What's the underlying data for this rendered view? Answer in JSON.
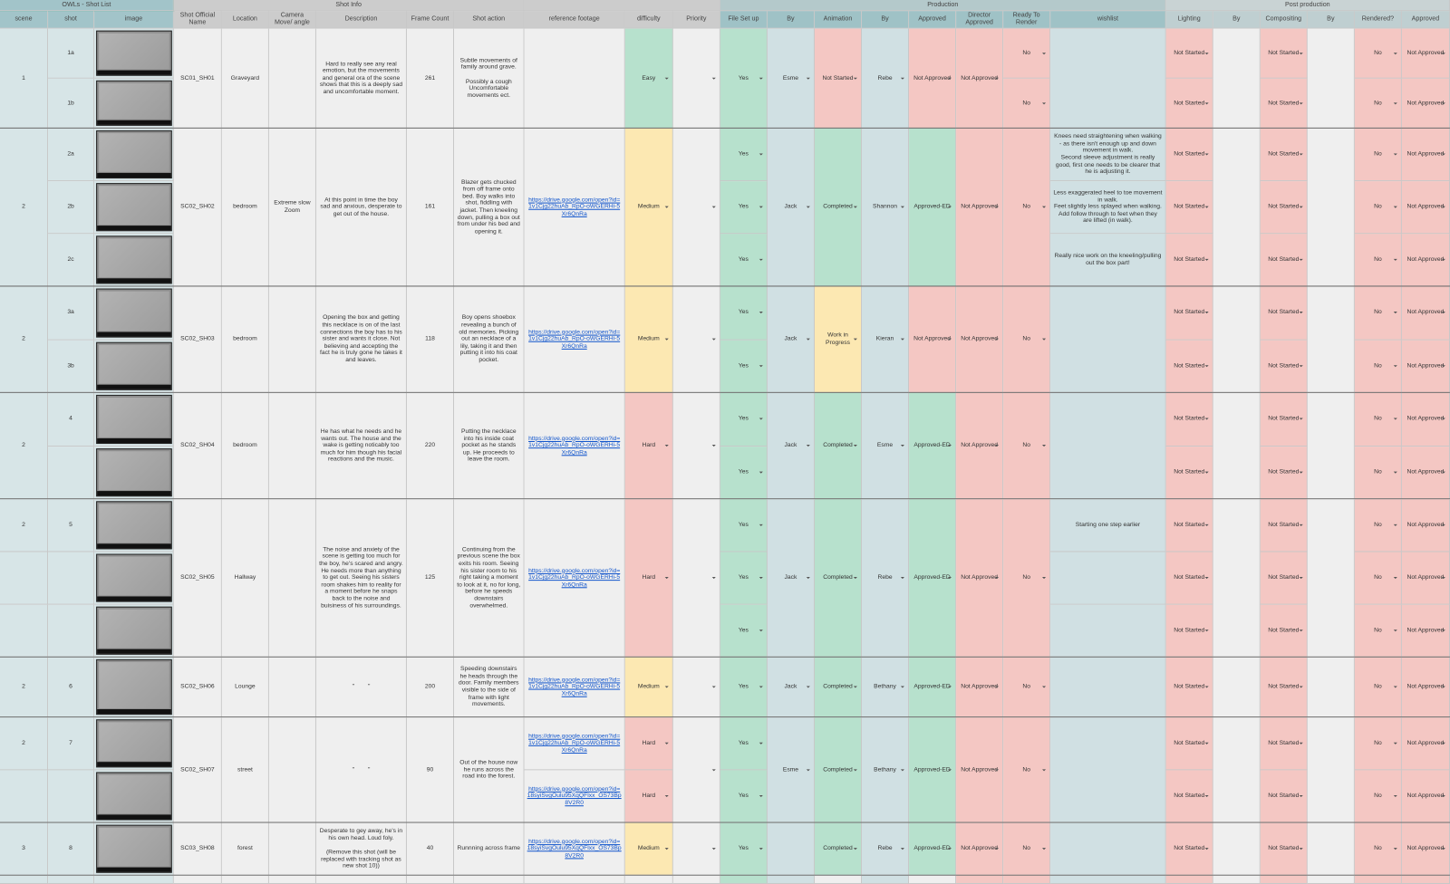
{
  "sheet": {
    "groups": [
      "OWLs - Shot List",
      "Shot Info",
      "Production",
      "Post production"
    ],
    "headers": [
      "scene",
      "shot",
      "image",
      "Shot Official Name",
      "Location",
      "Camera Move/ angle",
      "Description",
      "Frame Count",
      "Shot action",
      "reference footage",
      "difficulty",
      "Priority",
      "File Set up",
      "By",
      "Animation",
      "By",
      "Approved",
      "Director Approved",
      "Ready To Render",
      "wishlist",
      "Lighting",
      "By",
      "Compositing",
      "By",
      "Rendered?",
      "Approved"
    ],
    "cell_colors": {
      "Easy": "#b7e1cd",
      "Medium": "#fce8b2",
      "Hard": "#f4c7c3",
      "Not Started": "#f4c7c3",
      "Completed": "#b7e1cd",
      "Work in Progress": "#fce8b2",
      "Not Approved": "#f4c7c3",
      "Approved-ED": "#b7e1cd",
      "Yes": "#b7e1cd",
      "No": "#f4c7c3"
    },
    "shots": [
      {
        "scene": "1",
        "name": "SC01_SH01",
        "location": "Graveyard",
        "description": "Hard to really see any real emotion, but the movements and general ora of the scene shows that this is a deeply sad and uncomfortable moment.",
        "frames": 261,
        "action": "Subtle movements of family around grave.\n\nPossibly a cough Uncomfortable movements ect.",
        "difficulty": "Easy",
        "file_setup": "Yes",
        "by": "Esme",
        "animation": "Not Started",
        "anim_by": "Rebe",
        "approved": "Not Approved",
        "director": "Not Approved",
        "subrows": [
          {
            "shot": "1a",
            "ready": "No",
            "lighting": "Not Started",
            "compositing": "Not Started",
            "rendered": "No",
            "post_approved": "Not Approved"
          },
          {
            "shot": "1b",
            "ready": "No",
            "lighting": "Not Started",
            "compositing": "Not Started",
            "rendered": "No",
            "post_approved": "Not Approved"
          }
        ]
      },
      {
        "scene": "2",
        "name": "SC02_SH02",
        "location": "bedroom",
        "camera": "Extreme slow Zoom",
        "description": "At this point in time the boy sad and anxious, desperate to get out of the house.",
        "frames": 161,
        "action": "Blazer gets chucked from off frame onto bed. Boy walks into shot, fiddling with jacket. Then kneeling down, pulling a box out from under his bed and opening it.",
        "reference": "https://drive.google.com/open?id=1v1Cjg22huAb_RpO-oWGERHi-5Xr6QnRa",
        "difficulty": "Medium",
        "by": "Jack",
        "animation": "Completed",
        "anim_by": "Shannon",
        "approved": "Approved-ED",
        "director": "Not Approved",
        "ready": "No",
        "subrows": [
          {
            "shot": "2a",
            "file_setup": "Yes",
            "wishlist": "Knees need straightening when walking - as there isn't enough up and down movement in walk.\nSecond sleeve adjustment is really good, first one needs to be clearer that he is adjusting it.",
            "lighting": "Not Started",
            "compositing": "Not Started",
            "rendered": "No",
            "post_approved": "Not Approved"
          },
          {
            "shot": "2b",
            "file_setup": "Yes",
            "wishlist": "Less exaggerated heel to toe movement in walk.\nFeet slightly less splayed when walking. Add follow through to feet when they are lifted (in walk).",
            "lighting": "Not Started",
            "compositing": "Not Started",
            "rendered": "No",
            "post_approved": "Not Approved"
          },
          {
            "shot": "2c",
            "file_setup": "Yes",
            "wishlist": "Really nice work on the kneeling/pulling out the box part!",
            "lighting": "Not Started",
            "compositing": "Not Started",
            "rendered": "No",
            "post_approved": "Not Approved"
          }
        ]
      },
      {
        "scene": "2",
        "name": "SC02_SH03",
        "location": "bedroom",
        "description": "Opening the box and getting this necklace is on of the last connections the boy has to his sister and wants it close. Not believing and accepting the fact he is truly gone he takes it and leaves.",
        "frames": 118,
        "action": "Boy opens shoebox revealing a bunch of old memories. Picking out an necklace of a lily, taking it and then putting it into his coat pocket.",
        "reference": "https://drive.google.com/open?id=1v1Cjg22huAb_RpO-oWGERHi-5Xr6QnRa",
        "difficulty": "Medium",
        "by": "Jack",
        "animation": "Work in Progress",
        "anim_by": "Kieran",
        "approved": "Not Approved",
        "director": "Not Approved",
        "ready": "No",
        "subrows": [
          {
            "shot": "3a",
            "file_setup": "Yes",
            "lighting": "Not Started",
            "compositing": "Not Started",
            "rendered": "No",
            "post_approved": "Not Approved"
          },
          {
            "shot": "3b",
            "file_setup": "Yes",
            "lighting": "Not Started",
            "compositing": "Not Started",
            "rendered": "No",
            "post_approved": "Not Approved"
          }
        ]
      },
      {
        "scene": "2",
        "name": "SC02_SH04",
        "location": "bedroom",
        "description": "He has what he needs and he wants out. The house and the wake is getting noticably too much for him though his facial reactions and the music.",
        "frames": 220,
        "action": "Putting the necklace into his inside coat pocket as he stands up. He proceeds to leave the room.",
        "reference": "https://drive.google.com/open?id=1v1Cjg22huAb_RpO-oWGERHi-5Xr6QnRa",
        "difficulty": "Hard",
        "by": "Jack",
        "animation": "Completed",
        "anim_by": "Esme",
        "approved": "Approved-ED",
        "director": "Not Approved",
        "ready": "No",
        "subrows": [
          {
            "shot": "4",
            "file_setup": "Yes",
            "lighting": "Not Started",
            "compositing": "Not Started",
            "rendered": "No",
            "post_approved": "Not Approved"
          },
          {
            "file_setup": "Yes",
            "lighting": "Not Started",
            "compositing": "Not Started",
            "rendered": "No",
            "post_approved": "Not Approved"
          }
        ]
      },
      {
        "name": "SC02_SH05",
        "location": "Hallway",
        "description": "The noise and anxiety of the scene is getting too much for the boy, he's scared and angry. He needs more than anything to get out. Seeing his sisters room shakes him to reality for a moment before he snaps back to the noise and buisiness of his surroundings.",
        "frames": 125,
        "action": "Continuing from the previous scene the box exits his room. Seeing his sister room to his right taking a moment to look at it, no for long, before he speeds downstairs overwhelmed.",
        "reference": "https://drive.google.com/open?id=1v1Cjg22huAb_RpO-oWGERHi-5Xr6QnRa",
        "difficulty": "Hard",
        "by": "Jack",
        "animation": "Completed",
        "anim_by": "Rebe",
        "approved": "Approved-ED",
        "director": "Not Approved",
        "ready": "No",
        "subrows": [
          {
            "scene": "2",
            "shot": "5",
            "file_setup": "Yes",
            "wishlist": "Starting one step earlier",
            "lighting": "Not Started",
            "compositing": "Not Started",
            "rendered": "No",
            "post_approved": "Not Approved"
          },
          {
            "file_setup": "Yes",
            "lighting": "Not Started",
            "compositing": "Not Started",
            "rendered": "No",
            "post_approved": "Not Approved"
          },
          {
            "file_setup": "Yes",
            "lighting": "Not Started",
            "compositing": "Not Started",
            "rendered": "No",
            "post_approved": "Not Approved"
          }
        ]
      },
      {
        "scene": "2",
        "name": "SC02_SH06",
        "location": "Lounge",
        "description": "\"        \"",
        "frames": 200,
        "action": "Speeding downstairs he heads through the door. Family members visible to the side of frame with light movements.",
        "reference": "https://drive.google.com/open?id=1v1Cjg22huAb_RpO-oWGERHi-5Xr6QnRa",
        "difficulty": "Medium",
        "by": "Jack",
        "animation": "Completed",
        "anim_by": "Bethany",
        "approved": "Approved-ED",
        "director": "Not Approved",
        "ready": "No",
        "subrows": [
          {
            "shot": "6",
            "file_setup": "Yes",
            "lighting": "Not Started",
            "compositing": "Not Started",
            "rendered": "No",
            "post_approved": "Not Approved"
          }
        ]
      },
      {
        "name": "SC02_SH07",
        "location": "street",
        "description": "\"        \"",
        "frames": 90,
        "action": "Out of the house now he runs across the road into the forest.",
        "by": "Esme",
        "animation": "Completed",
        "anim_by": "Bethany",
        "approved": "Approved-ED",
        "director": "Not Approved",
        "ready": "No",
        "subrows": [
          {
            "scene": "2",
            "shot": "7",
            "reference": "https://drive.google.com/open?id=1v1Cjg22huAb_RpO-oWGERHi-5Xr6QnRa",
            "difficulty": "Hard",
            "file_setup": "Yes",
            "lighting": "Not Started",
            "compositing": "Not Started",
            "rendered": "No",
            "post_approved": "Not Approved"
          },
          {
            "reference": "https://drive.google.com/open?id=18syiSvgOulu95XqQFlxx_OS73Bp8V2R0",
            "difficulty": "Hard",
            "file_setup": "Yes",
            "lighting": "Not Started",
            "compositing": "Not Started",
            "rendered": "No",
            "post_approved": "Not Approved"
          }
        ]
      },
      {
        "scene": "3",
        "name": "SC03_SH08",
        "location": "forest",
        "description": "Desperate to gey away, he's in his own head. Loud foly.\n\n(Remove this shot (will be replaced with tracking shot as new shot 10))",
        "frames": 40,
        "action": "Runnning across frame",
        "reference": "https://drive.google.com/open?id=18syiSvgOulu95XqQFlxx_OS73Bp8V2R0",
        "difficulty": "Medium",
        "animation": "Completed",
        "anim_by": "Rebe",
        "approved": "Approved-ED",
        "director": "Not Approved",
        "ready": "No",
        "subrows": [
          {
            "shot": "8",
            "file_setup": "Yes",
            "lighting": "Not Started",
            "compositing": "Not Started",
            "rendered": "No",
            "post_approved": "Not Approved"
          }
        ]
      }
    ]
  }
}
